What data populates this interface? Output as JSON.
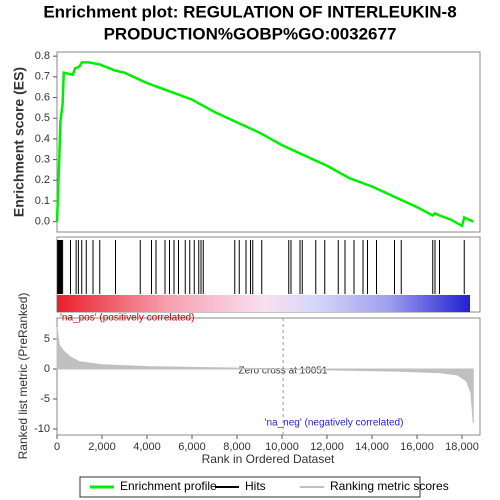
{
  "chart_data": [
    {
      "type": "line",
      "title": [
        "Enrichment plot: REGULATION OF INTERLEUKIN-8",
        "PRODUCTION%GOBP%GO:0032677"
      ],
      "y_label": "Enrichment score (ES)",
      "xlim": [
        0,
        18800
      ],
      "ylim": [
        -0.05,
        0.82
      ],
      "yticks": [
        {
          "value": 0,
          "label": "0.0"
        },
        0.1,
        0.2,
        0.3,
        0.4,
        0.5,
        0.6,
        0.7,
        0.8
      ],
      "series": [
        {
          "name": "Enrichment profile",
          "color": "#00ee00",
          "x": [
            0,
            50,
            100,
            150,
            250,
            300,
            700,
            800,
            1000,
            1100,
            1400,
            1900,
            2600,
            3000,
            4000,
            5000,
            6000,
            6500,
            7000,
            8000,
            9000,
            10000,
            11000,
            12000,
            13000,
            14000,
            15000,
            16000,
            16700,
            16800,
            17000,
            17500,
            18000,
            18100,
            18500
          ],
          "values": [
            0,
            0.15,
            0.3,
            0.48,
            0.57,
            0.72,
            0.71,
            0.74,
            0.75,
            0.77,
            0.77,
            0.76,
            0.73,
            0.72,
            0.67,
            0.63,
            0.59,
            0.56,
            0.53,
            0.48,
            0.43,
            0.37,
            0.32,
            0.27,
            0.21,
            0.17,
            0.12,
            0.07,
            0.03,
            0.04,
            0.03,
            0.01,
            -0.02,
            0.02,
            0.0
          ]
        }
      ]
    },
    {
      "type": "rug",
      "xlim": [
        0,
        18800
      ],
      "series": [
        {
          "name": "Hits",
          "color": "#000000",
          "x": [
            30,
            60,
            90,
            120,
            150,
            180,
            210,
            250,
            600,
            850,
            950,
            1100,
            1300,
            1600,
            1900,
            2600,
            3700,
            4200,
            4400,
            4800,
            5000,
            5200,
            5400,
            5700,
            5900,
            6100,
            6300,
            6400,
            6500,
            7900,
            8100,
            8400,
            8600,
            8700,
            9100,
            10300,
            10400,
            10800,
            10900,
            11500,
            11900,
            12500,
            12800,
            13200,
            13600,
            13800,
            14200,
            15000,
            15300,
            16700,
            16800,
            17000,
            18100
          ]
        }
      ]
    },
    {
      "type": "area",
      "y_label": "Ranked list metric (PreRanked)",
      "x_label": "Rank in Ordered Dataset",
      "xlim": [
        0,
        18800
      ],
      "ylim": [
        -11,
        8.5
      ],
      "xticks": [
        0,
        {
          "value": 2000,
          "label": "2,000"
        },
        {
          "value": 4000,
          "label": "4,000"
        },
        {
          "value": 6000,
          "label": "6,000"
        },
        {
          "value": 8000,
          "label": "8,000"
        },
        {
          "value": 10000,
          "label": "10,000"
        },
        {
          "value": 12000,
          "label": "12,000"
        },
        {
          "value": 14000,
          "label": "14,000"
        },
        {
          "value": 16000,
          "label": "16,000"
        },
        {
          "value": 18000,
          "label": "18,000"
        }
      ],
      "yticks": [
        -10,
        -5,
        0,
        5
      ],
      "zero_cross": 10051,
      "annotations": [
        "'na_pos' (positively correlated)",
        "Zero cross at 10051",
        "'na_neg' (negatively correlated)"
      ],
      "series": [
        {
          "name": "Ranking metric scores",
          "color": "#c0c0c0",
          "x": [
            0,
            100,
            300,
            600,
            1000,
            2000,
            4000,
            8000,
            10051,
            12000,
            15000,
            17000,
            17800,
            18200,
            18400,
            18500
          ],
          "values": [
            7,
            4,
            3,
            2,
            1.2,
            0.7,
            0.4,
            0.15,
            0,
            -0.15,
            -0.35,
            -0.6,
            -1,
            -2,
            -4,
            -9
          ]
        }
      ]
    }
  ]
}
